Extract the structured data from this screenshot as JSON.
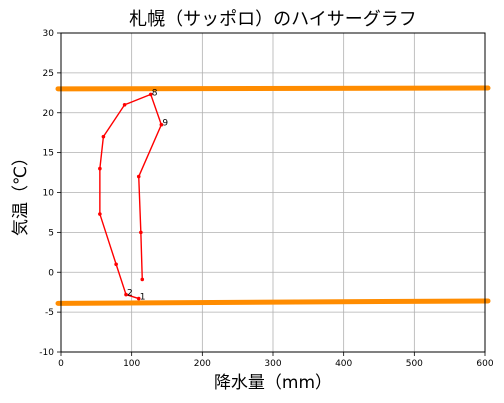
{
  "chart_data": {
    "type": "line",
    "title": "札幌（サッポロ）のハイサーグラフ",
    "xlabel": "降水量（mm）",
    "ylabel": "気温（℃）",
    "xlim": [
      0,
      600
    ],
    "ylim": [
      -10,
      30
    ],
    "xticks": [
      0,
      100,
      200,
      300,
      400,
      500,
      600
    ],
    "yticks": [
      -10,
      -5,
      0,
      5,
      10,
      15,
      20,
      25,
      30
    ],
    "grid": true,
    "series": [
      {
        "color": "#ff0000",
        "points": [
          {
            "x": 110,
            "y": -3.3,
            "label": "1"
          },
          {
            "x": 92,
            "y": -2.8,
            "label": "2"
          },
          {
            "x": 78,
            "y": 1.0,
            "label": ""
          },
          {
            "x": 55,
            "y": 7.3,
            "label": ""
          },
          {
            "x": 55,
            "y": 13.0,
            "label": ""
          },
          {
            "x": 60,
            "y": 17.0,
            "label": ""
          },
          {
            "x": 90,
            "y": 21.0,
            "label": ""
          },
          {
            "x": 127,
            "y": 22.3,
            "label": "8"
          },
          {
            "x": 142,
            "y": 18.5,
            "label": "9"
          },
          {
            "x": 110,
            "y": 12.0,
            "label": ""
          },
          {
            "x": 113,
            "y": 5.0,
            "label": ""
          },
          {
            "x": 115,
            "y": -0.9,
            "label": ""
          }
        ]
      }
    ],
    "reference_lines": [
      {
        "color": "#ff8c00",
        "y_start": 23.0,
        "y_end": 23.1
      },
      {
        "color": "#ff8c00",
        "y_start": -3.9,
        "y_end": -3.6
      }
    ]
  }
}
